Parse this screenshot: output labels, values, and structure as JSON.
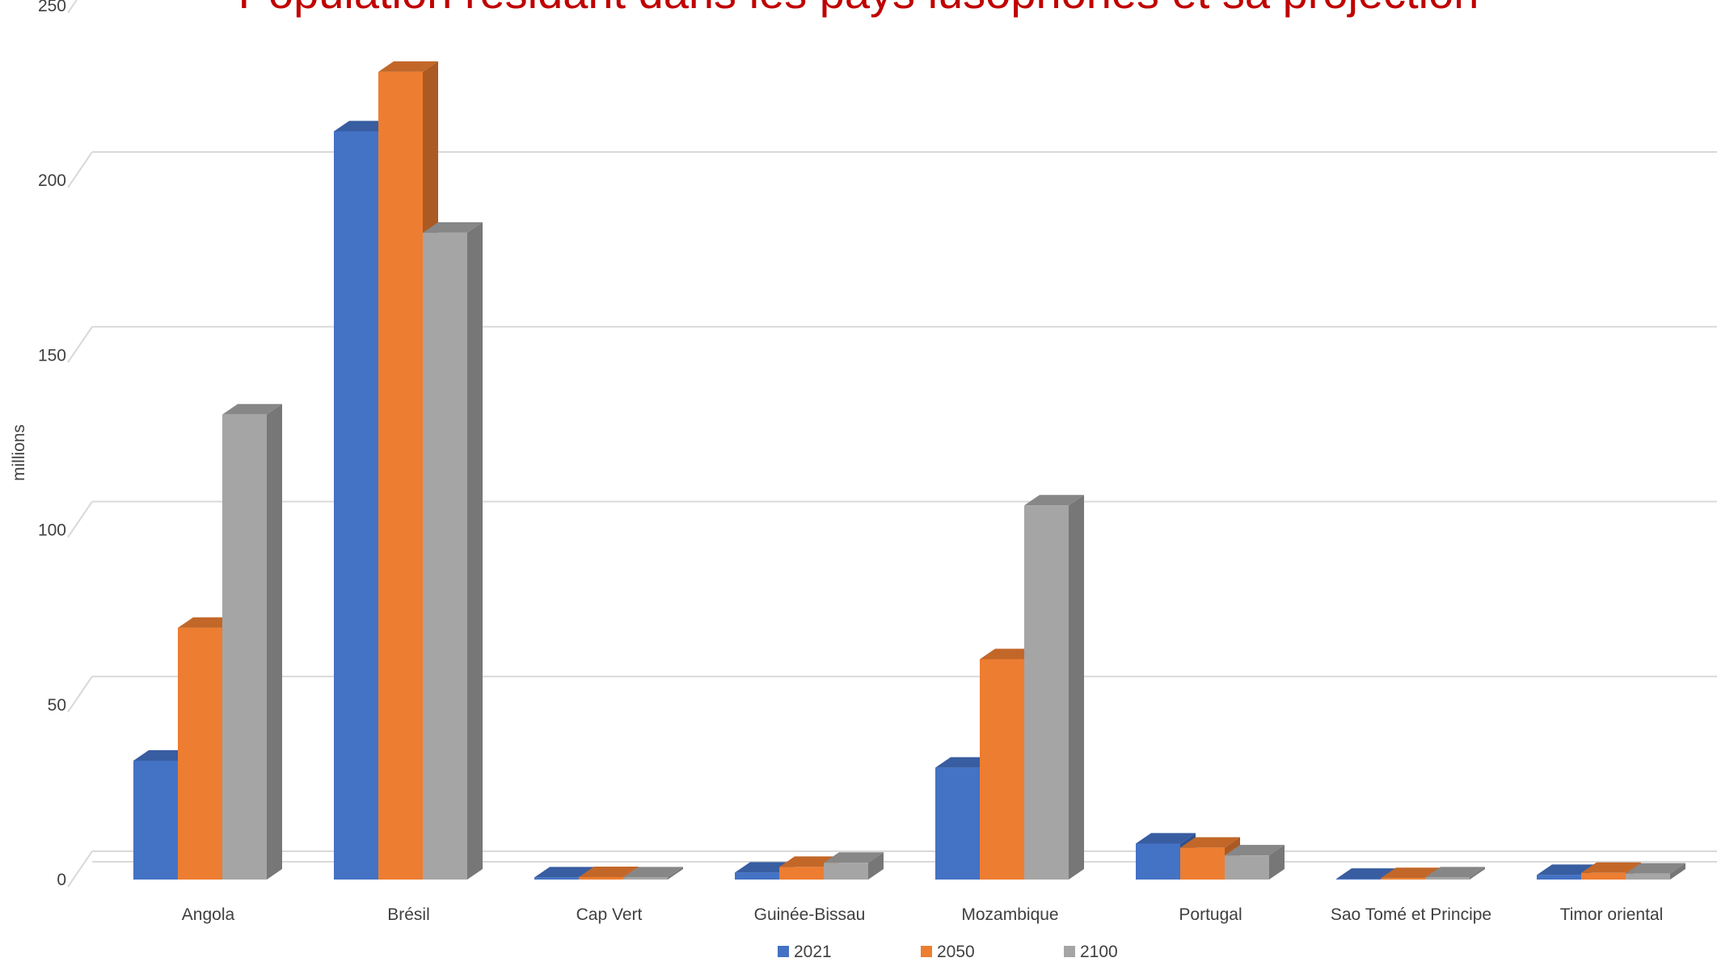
{
  "chart_data": {
    "type": "bar",
    "title": "Population résidant dans les pays lusophones et sa projection",
    "ylabel": "millions",
    "xlabel": "",
    "ylim": [
      0,
      250
    ],
    "yticks": [
      0,
      50,
      100,
      150,
      200,
      250
    ],
    "grid": true,
    "legend_position": "bottom",
    "three_d": true,
    "title_color": "#C00000",
    "categories": [
      "Angola",
      "Brésil",
      "Cap Vert",
      "Guinée-Bissau",
      "Mozambique",
      "Portugal",
      "Sao Tomé et Principe",
      "Timor oriental"
    ],
    "series": [
      {
        "name": "2021",
        "color": "#4472C4",
        "values": [
          34,
          214,
          0.6,
          2,
          32,
          10.3,
          0.2,
          1.3
        ]
      },
      {
        "name": "2050",
        "color": "#ED7D31",
        "values": [
          72,
          231,
          0.7,
          3.6,
          63,
          9.1,
          0.4,
          1.9
        ]
      },
      {
        "name": "2100",
        "color": "#A5A5A5",
        "values": [
          133,
          185,
          0.6,
          4.8,
          107,
          6.9,
          0.6,
          1.7
        ]
      }
    ]
  }
}
